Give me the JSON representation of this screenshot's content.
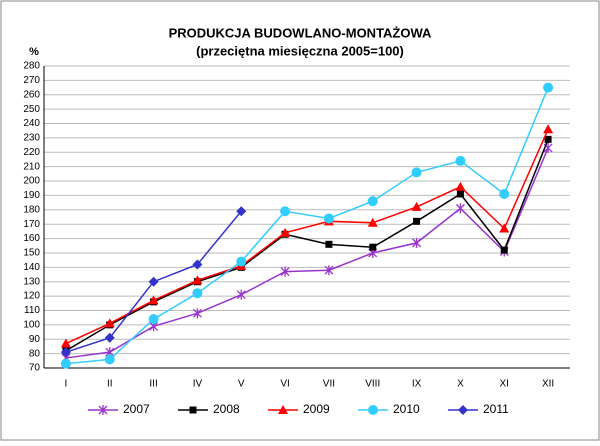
{
  "chart_data": {
    "type": "line",
    "title": "PRODUKCJA BUDOWLANO-MONTAŻOWA",
    "subtitle": "(przeciętna miesięczna 2005=100)",
    "y_label": "%",
    "categories": [
      "I",
      "II",
      "III",
      "IV",
      "V",
      "VI",
      "VII",
      "VIII",
      "IX",
      "X",
      "XI",
      "XII"
    ],
    "series": [
      {
        "name": "2007",
        "color": "#9933cc",
        "marker": "asterisk",
        "values": [
          77,
          81,
          99,
          108,
          121,
          137,
          138,
          150,
          157,
          181,
          151,
          223
        ]
      },
      {
        "name": "2008",
        "color": "#000000",
        "marker": "square",
        "values": [
          82,
          100,
          116,
          130,
          140,
          163,
          156,
          154,
          172,
          191,
          152,
          229
        ]
      },
      {
        "name": "2009",
        "color": "#ff0000",
        "marker": "triangle",
        "values": [
          87,
          101,
          117,
          131,
          141,
          164,
          172,
          171,
          182,
          196,
          167,
          236
        ]
      },
      {
        "name": "2010",
        "color": "#33ccff",
        "marker": "circle",
        "values": [
          73,
          76,
          104,
          122,
          144,
          179,
          174,
          186,
          206,
          214,
          191,
          265
        ]
      },
      {
        "name": "2011",
        "color": "#3333cc",
        "marker": "diamond",
        "values": [
          81,
          91,
          130,
          142,
          179,
          null,
          null,
          null,
          null,
          null,
          null,
          null
        ]
      }
    ],
    "ylim": [
      70,
      280
    ],
    "yticks": [
      70,
      80,
      90,
      100,
      110,
      120,
      130,
      140,
      150,
      160,
      170,
      180,
      190,
      200,
      210,
      220,
      230,
      240,
      250,
      260,
      270,
      280
    ],
    "grid": true,
    "legend": "bottom"
  }
}
